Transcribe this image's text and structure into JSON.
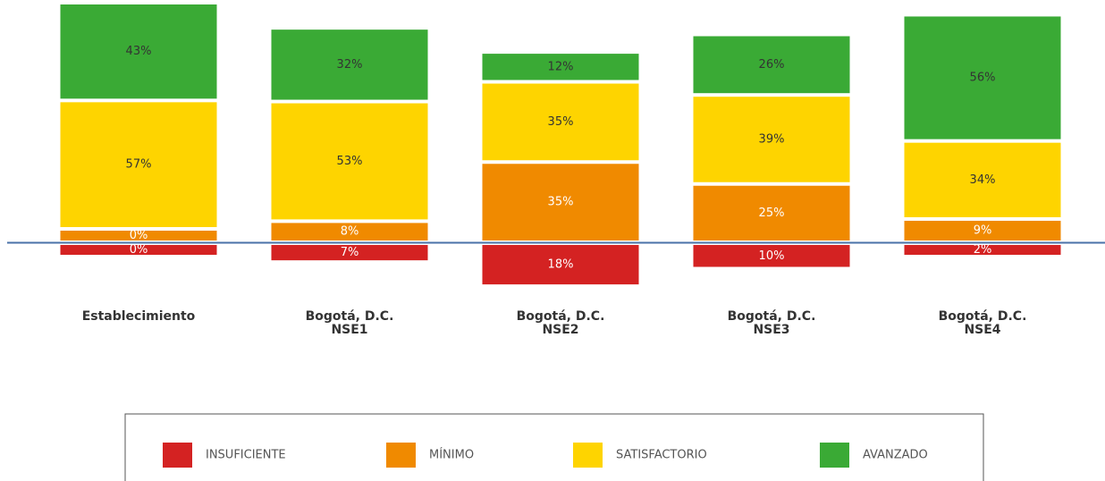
{
  "chart_data": {
    "type": "diverging_stacked_bar",
    "categories": [
      "Establecimiento",
      "Bogotá, D.C.\nNSE1",
      "Bogotá, D.C.\nNSE2",
      "Bogotá, D.C.\nNSE3",
      "Bogotá, D.C.\nNSE4"
    ],
    "series": [
      {
        "name": "INSUFICIENTE",
        "color": "#d42222",
        "values": [
          0,
          7,
          18,
          10,
          2
        ],
        "value_labels": [
          "0%",
          "7%",
          "18%",
          "10%",
          "2%"
        ]
      },
      {
        "name": "MÍNIMO",
        "color": "#f08a00",
        "values": [
          0,
          8,
          35,
          25,
          9
        ],
        "value_labels": [
          "0%",
          "8%",
          "35%",
          "25%",
          "9%"
        ]
      },
      {
        "name": "SATISFACTORIO",
        "color": "#fed400",
        "values": [
          57,
          53,
          35,
          39,
          34
        ],
        "value_labels": [
          "57%",
          "53%",
          "35%",
          "39%",
          "34%"
        ]
      },
      {
        "name": "AVANZADO",
        "color": "#3aaa35",
        "values": [
          43,
          32,
          12,
          26,
          56
        ],
        "value_labels": [
          "43%",
          "32%",
          "12%",
          "26%",
          "56%"
        ]
      }
    ],
    "legend": "bottom"
  }
}
